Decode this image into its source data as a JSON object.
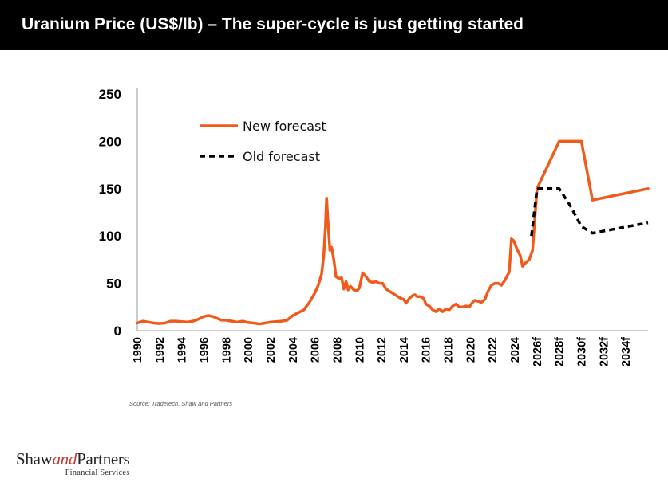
{
  "title": "Uranium Price (US$/lb) – The super-cycle is just getting started",
  "source": "Source: Tradetech, Shaw and Partners",
  "logo": {
    "shaw": "Shaw",
    "and": "and",
    "partners": "Partners",
    "sub": "Financial Services"
  },
  "colors": {
    "new_forecast": "#f05a1a",
    "old_forecast": "#000000",
    "axis": "#000000",
    "title_bg": "#000000"
  },
  "chart_data": {
    "type": "line",
    "title": "Uranium Price (US$/lb)",
    "xlabel": "",
    "ylabel": "",
    "ylim": [
      0,
      250
    ],
    "xlim": [
      1990,
      2036
    ],
    "y_ticks": [
      0,
      50,
      100,
      150,
      200,
      250
    ],
    "x_tick_positions": [
      1990,
      1992,
      1994,
      1996,
      1998,
      2000,
      2002,
      2004,
      2006,
      2008,
      2010,
      2012,
      2014,
      2016,
      2018,
      2020,
      2022,
      2024,
      2026,
      2028,
      2030,
      2032,
      2034
    ],
    "x_tick_labels": [
      "1990",
      "1992",
      "1994",
      "1996",
      "1998",
      "2000",
      "2002",
      "2004",
      "2006",
      "2008",
      "2010",
      "2012",
      "2014",
      "2016",
      "2018",
      "2020",
      "2022",
      "2024",
      "2026f",
      "2028f",
      "2030f",
      "2032f",
      "2034f"
    ],
    "legend": {
      "position": "top-left"
    },
    "series": [
      {
        "name": "New forecast",
        "style": "solid",
        "points": [
          [
            1990,
            8
          ],
          [
            1990.5,
            10
          ],
          [
            1991,
            9
          ],
          [
            1991.5,
            8
          ],
          [
            1992,
            7.5
          ],
          [
            1992.5,
            8
          ],
          [
            1993,
            10
          ],
          [
            1993.5,
            10
          ],
          [
            1994,
            9.5
          ],
          [
            1994.5,
            9
          ],
          [
            1995,
            10
          ],
          [
            1995.5,
            12
          ],
          [
            1996,
            15
          ],
          [
            1996.4,
            16
          ],
          [
            1996.8,
            15
          ],
          [
            1997.2,
            13
          ],
          [
            1997.6,
            11
          ],
          [
            1998,
            11
          ],
          [
            1998.5,
            10
          ],
          [
            1999,
            9
          ],
          [
            1999.5,
            10
          ],
          [
            2000,
            8.5
          ],
          [
            2000.5,
            8
          ],
          [
            2001,
            7
          ],
          [
            2001.5,
            8
          ],
          [
            2002,
            9
          ],
          [
            2002.5,
            9.5
          ],
          [
            2003,
            10
          ],
          [
            2003.5,
            11
          ],
          [
            2004,
            16
          ],
          [
            2004.5,
            19
          ],
          [
            2005,
            22
          ],
          [
            2005.5,
            30
          ],
          [
            2006,
            40
          ],
          [
            2006.3,
            48
          ],
          [
            2006.6,
            60
          ],
          [
            2006.8,
            80
          ],
          [
            2006.95,
            110
          ],
          [
            2007.05,
            140
          ],
          [
            2007.2,
            110
          ],
          [
            2007.35,
            85
          ],
          [
            2007.5,
            88
          ],
          [
            2007.7,
            75
          ],
          [
            2007.9,
            57
          ],
          [
            2008.2,
            55
          ],
          [
            2008.4,
            56
          ],
          [
            2008.6,
            44
          ],
          [
            2008.8,
            52
          ],
          [
            2009,
            43
          ],
          [
            2009.2,
            47
          ],
          [
            2009.5,
            43
          ],
          [
            2009.8,
            42
          ],
          [
            2010,
            45
          ],
          [
            2010.3,
            61
          ],
          [
            2010.6,
            57
          ],
          [
            2010.9,
            52
          ],
          [
            2011.2,
            51
          ],
          [
            2011.5,
            52
          ],
          [
            2011.8,
            50
          ],
          [
            2012.1,
            50
          ],
          [
            2012.4,
            44
          ],
          [
            2012.8,
            41
          ],
          [
            2013.2,
            38
          ],
          [
            2013.6,
            35
          ],
          [
            2014,
            33
          ],
          [
            2014.2,
            29
          ],
          [
            2014.5,
            34
          ],
          [
            2014.8,
            37
          ],
          [
            2015,
            38
          ],
          [
            2015.2,
            36
          ],
          [
            2015.5,
            36
          ],
          [
            2015.8,
            34
          ],
          [
            2016,
            28
          ],
          [
            2016.3,
            26
          ],
          [
            2016.6,
            22
          ],
          [
            2016.9,
            20
          ],
          [
            2017.2,
            23
          ],
          [
            2017.5,
            20
          ],
          [
            2017.8,
            23
          ],
          [
            2018.1,
            22
          ],
          [
            2018.4,
            26
          ],
          [
            2018.7,
            28
          ],
          [
            2019,
            25
          ],
          [
            2019.3,
            25
          ],
          [
            2019.6,
            26
          ],
          [
            2019.9,
            25
          ],
          [
            2020.2,
            30
          ],
          [
            2020.4,
            32
          ],
          [
            2020.7,
            31
          ],
          [
            2021,
            30
          ],
          [
            2021.3,
            33
          ],
          [
            2021.6,
            42
          ],
          [
            2021.9,
            48
          ],
          [
            2022.2,
            50
          ],
          [
            2022.5,
            50
          ],
          [
            2022.8,
            48
          ],
          [
            2023.1,
            53
          ],
          [
            2023.5,
            62
          ],
          [
            2023.7,
            97
          ],
          [
            2023.9,
            95
          ],
          [
            2024.2,
            86
          ],
          [
            2024.5,
            79
          ],
          [
            2024.7,
            68
          ],
          [
            2025,
            72
          ],
          [
            2025.3,
            75
          ],
          [
            2025.6,
            85
          ],
          [
            2026,
            150
          ],
          [
            2028,
            200
          ],
          [
            2030,
            200
          ],
          [
            2031,
            138
          ],
          [
            2036,
            150
          ]
        ]
      },
      {
        "name": "Old forecast",
        "style": "dashed",
        "points": [
          [
            2025.5,
            100
          ],
          [
            2026,
            150
          ],
          [
            2028,
            150
          ],
          [
            2029,
            132
          ],
          [
            2030,
            110
          ],
          [
            2031,
            103
          ],
          [
            2036,
            114
          ]
        ]
      }
    ]
  }
}
